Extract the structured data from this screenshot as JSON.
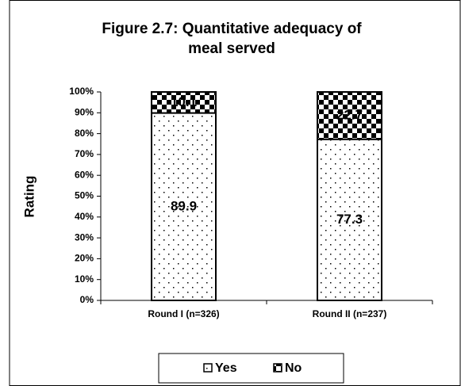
{
  "chart_data": {
    "type": "stacked_bar",
    "title": "Figure 2.7: Quantitative adequacy of meal served",
    "y_label": "Rating",
    "categories": [
      "Round I (n=326)",
      "Round II (n=237)"
    ],
    "series": [
      {
        "name": "Yes",
        "values": [
          89.9,
          77.3
        ]
      },
      {
        "name": "No",
        "values": [
          10.1,
          22.7
        ]
      }
    ],
    "ylim": [
      0,
      100
    ],
    "yticks": [
      {
        "value": 0,
        "label": "0%"
      },
      {
        "value": 10,
        "label": "10%"
      },
      {
        "value": 20,
        "label": "20%"
      },
      {
        "value": 30,
        "label": "30%"
      },
      {
        "value": 40,
        "label": "40%"
      },
      {
        "value": 50,
        "label": "50%"
      },
      {
        "value": 60,
        "label": "60%"
      },
      {
        "value": 70,
        "label": "70%"
      },
      {
        "value": 80,
        "label": "80%"
      },
      {
        "value": 90,
        "label": "90%"
      },
      {
        "value": 100,
        "label": "100%"
      }
    ],
    "legend": "bottom"
  }
}
